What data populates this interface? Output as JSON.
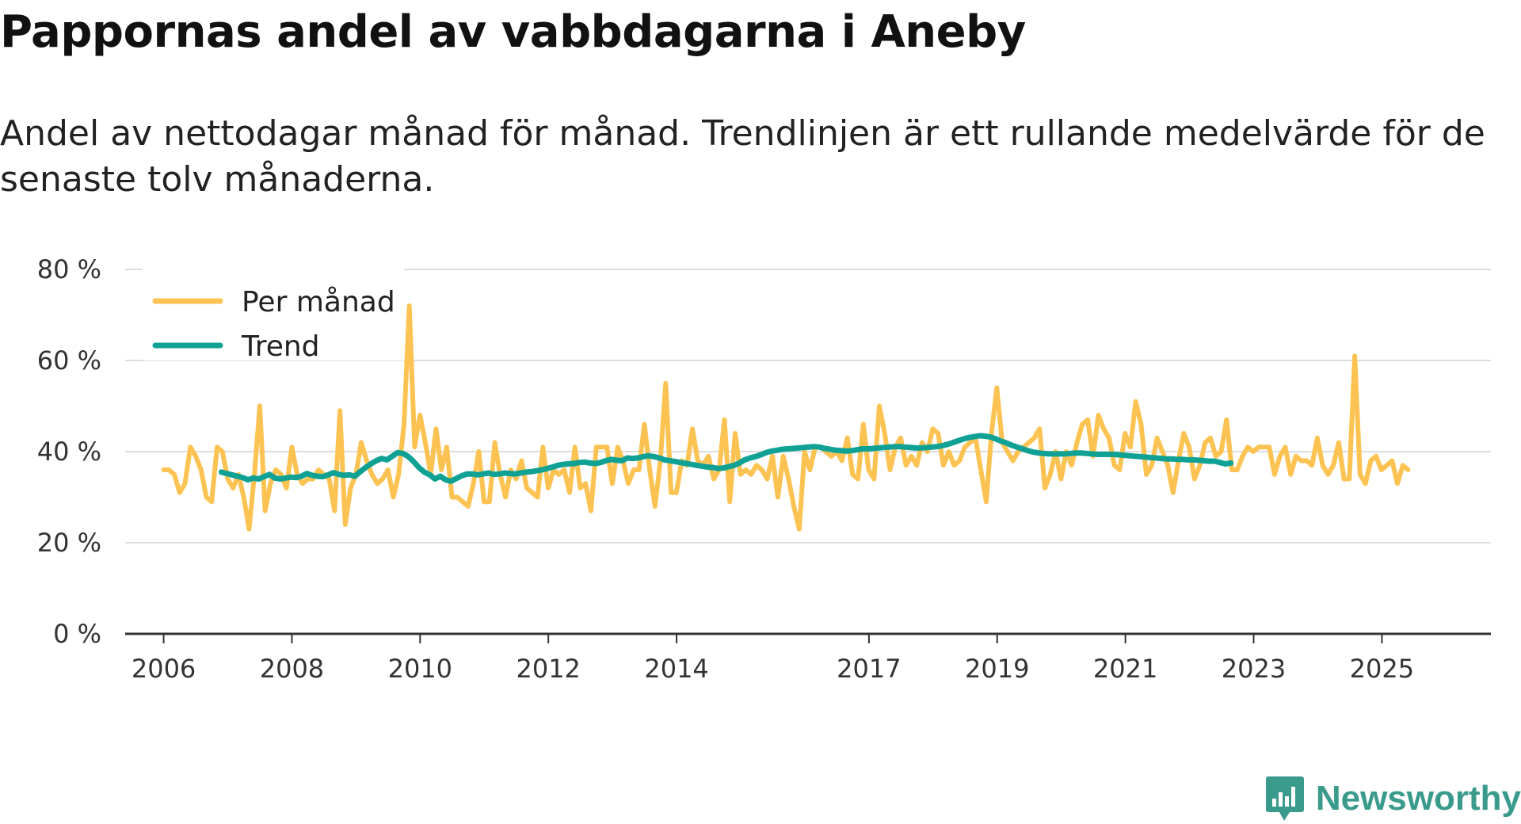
{
  "title": "Pappornas andel av vabbdagarna i Aneby",
  "subtitle": "Andel av nettodagar månad för månad. Trendlinjen är ett rullande medelvärde för de senaste tolv månaderna.",
  "brand": {
    "name": "Newsworthy",
    "icon": "newsworthy-logo-icon"
  },
  "colors": {
    "monthly": "#fcc352",
    "trend": "#10a195",
    "grid": "#dddddd",
    "axis": "#333333",
    "brand": "#3a9a8c"
  },
  "chart_data": {
    "type": "line",
    "title": "Pappornas andel av vabbdagarna i Aneby",
    "xlabel": "",
    "ylabel": "",
    "x_range": [
      2005.4,
      2026.7
    ],
    "ylim": [
      0,
      80
    ],
    "y_ticks": [
      0,
      20,
      40,
      60,
      80
    ],
    "y_tick_labels": [
      "0 %",
      "20 %",
      "40 %",
      "60 %",
      "80 %"
    ],
    "x_ticks": [
      2006,
      2008,
      2010,
      2012,
      2014,
      2017,
      2019,
      2021,
      2023,
      2025
    ],
    "x_tick_labels": [
      "2006",
      "2008",
      "2010",
      "2012",
      "2014",
      "2017",
      "2019",
      "2021",
      "2023",
      "2025"
    ],
    "grid": true,
    "legend": "top-left",
    "series": [
      {
        "name": "Per månad",
        "x_start": 2006.0,
        "step": 0.0833,
        "values": [
          36,
          36,
          35,
          31,
          33,
          41,
          39,
          36,
          30,
          29,
          41,
          40,
          34,
          32,
          35,
          30,
          23,
          35,
          50,
          27,
          33,
          36,
          35,
          32,
          41,
          35,
          33,
          34,
          34,
          36,
          35,
          34,
          27,
          49,
          24,
          32,
          35,
          42,
          38,
          35,
          33,
          34,
          36,
          30,
          35,
          46,
          72,
          41,
          48,
          42,
          35,
          45,
          36,
          41,
          30,
          30,
          29,
          28,
          33,
          40,
          29,
          29,
          42,
          35,
          30,
          36,
          34,
          38,
          32,
          31,
          30,
          41,
          32,
          36,
          35,
          36,
          31,
          41,
          32,
          33,
          27,
          41,
          41,
          41,
          33,
          41,
          38,
          33,
          36,
          36,
          46,
          36,
          28,
          38,
          55,
          31,
          31,
          38,
          37,
          45,
          38,
          37,
          39,
          34,
          36,
          47,
          29,
          44,
          35,
          36,
          35,
          37,
          36,
          34,
          39,
          30,
          39,
          34,
          28,
          23,
          40,
          36,
          41,
          41,
          40,
          39,
          40,
          38,
          43,
          35,
          34,
          46,
          36,
          34,
          50,
          44,
          36,
          41,
          43,
          37,
          39,
          37,
          42,
          40,
          45,
          44,
          37,
          40,
          37,
          38,
          41,
          42,
          43,
          36,
          29,
          44,
          54,
          42,
          40,
          38,
          40,
          41,
          42,
          43,
          45,
          32,
          35,
          40,
          34,
          40,
          37,
          42,
          46,
          47,
          39,
          48,
          45,
          43,
          37,
          36,
          44,
          41,
          51,
          46,
          35,
          37,
          43,
          40,
          37,
          31,
          38,
          44,
          41,
          34,
          37,
          42,
          43,
          39,
          40,
          47,
          36,
          36,
          39,
          41,
          40,
          41,
          41,
          41,
          35,
          39,
          41,
          35,
          39,
          38,
          38,
          37,
          43,
          37,
          35,
          37,
          42,
          34,
          34,
          61,
          35,
          33,
          38,
          39,
          36,
          37,
          38,
          33,
          37,
          36
        ]
      },
      {
        "name": "Trend",
        "x_start": 2006.9,
        "step": 0.0833,
        "values": [
          35.5,
          35.2,
          34.9,
          34.6,
          34.3,
          33.8,
          34.2,
          34.0,
          34.5,
          35.0,
          34.2,
          34.0,
          34.2,
          34.4,
          34.3,
          34.6,
          35.2,
          34.8,
          34.6,
          34.5,
          34.9,
          35.4,
          35.0,
          34.8,
          34.9,
          34.6,
          35.6,
          36.5,
          37.3,
          38.0,
          38.5,
          38.2,
          39.0,
          39.8,
          39.6,
          38.9,
          37.8,
          36.5,
          35.5,
          34.9,
          34.0,
          34.6,
          33.8,
          33.5,
          34.1,
          34.7,
          35.1,
          35.1,
          34.9,
          35.1,
          35.3,
          35.0,
          35.1,
          35.3,
          35.2,
          35.1,
          35.3,
          35.5,
          35.6,
          35.8,
          36.0,
          36.3,
          36.6,
          37.0,
          37.2,
          37.3,
          37.4,
          37.6,
          37.7,
          37.5,
          37.4,
          37.6,
          38.0,
          38.3,
          38.1,
          38.0,
          38.6,
          38.5,
          38.6,
          38.9,
          39.1,
          38.9,
          38.6,
          38.2,
          38.0,
          37.8,
          37.6,
          37.4,
          37.2,
          37.0,
          36.8,
          36.6,
          36.5,
          36.3,
          36.4,
          36.7,
          37.0,
          37.5,
          38.2,
          38.6,
          38.9,
          39.3,
          39.8,
          40.1,
          40.3,
          40.5,
          40.6,
          40.7,
          40.8,
          40.9,
          41.0,
          41.1,
          41.0,
          40.7,
          40.5,
          40.3,
          40.2,
          40.1,
          40.2,
          40.4,
          40.6,
          40.6,
          40.7,
          40.8,
          40.9,
          41.0,
          41.1,
          41.1,
          41.0,
          40.9,
          40.8,
          40.8,
          40.9,
          41.0,
          41.1,
          41.3,
          41.6,
          42.0,
          42.4,
          42.8,
          43.1,
          43.3,
          43.5,
          43.4,
          43.2,
          42.8,
          42.3,
          41.9,
          41.4,
          41.0,
          40.6,
          40.2,
          39.9,
          39.7,
          39.6,
          39.5,
          39.5,
          39.5,
          39.5,
          39.6,
          39.7,
          39.7,
          39.6,
          39.5,
          39.4,
          39.4,
          39.4,
          39.4,
          39.3,
          39.2,
          39.1,
          39.0,
          38.9,
          38.8,
          38.7,
          38.6,
          38.5,
          38.4,
          38.4,
          38.3,
          38.3,
          38.2,
          38.2,
          38.1,
          38.0,
          37.9,
          37.9,
          37.6,
          37.3,
          37.5
        ]
      }
    ]
  }
}
